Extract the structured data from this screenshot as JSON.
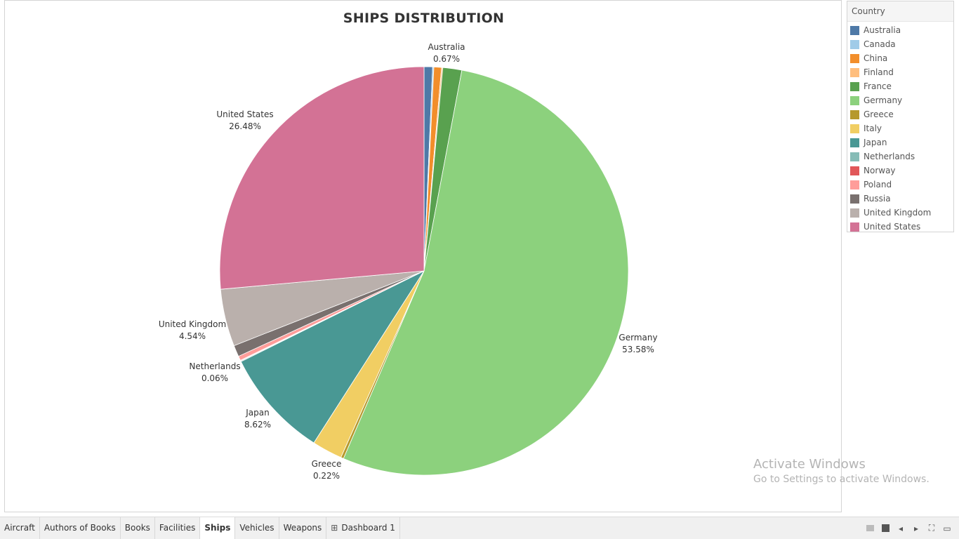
{
  "legend": {
    "title": "Country",
    "items": [
      {
        "label": "Australia",
        "color": "#4e79a7"
      },
      {
        "label": "Canada",
        "color": "#a0cbe8"
      },
      {
        "label": "China",
        "color": "#f28e2b"
      },
      {
        "label": "Finland",
        "color": "#ffbe7d"
      },
      {
        "label": "France",
        "color": "#59a14f"
      },
      {
        "label": "Germany",
        "color": "#8cd17d"
      },
      {
        "label": "Greece",
        "color": "#b6992d"
      },
      {
        "label": "Italy",
        "color": "#f1ce63"
      },
      {
        "label": "Japan",
        "color": "#499894"
      },
      {
        "label": "Netherlands",
        "color": "#86bcb6"
      },
      {
        "label": "Norway",
        "color": "#e15759"
      },
      {
        "label": "Poland",
        "color": "#ff9d9a"
      },
      {
        "label": "Russia",
        "color": "#79706e"
      },
      {
        "label": "United Kingdom",
        "color": "#bab0ac"
      },
      {
        "label": "United States",
        "color": "#d37295"
      }
    ]
  },
  "chart_data": {
    "type": "pie",
    "title": "SHIPS DISTRIBUTION",
    "unit": "%",
    "slices": [
      {
        "label": "Australia",
        "value": 0.67,
        "color": "#4e79a7",
        "show_label": true,
        "pct_text": "0.67%"
      },
      {
        "label": "Canada",
        "value": 0.1,
        "color": "#a0cbe8",
        "show_label": false
      },
      {
        "label": "China",
        "value": 0.6,
        "color": "#f28e2b",
        "show_label": false
      },
      {
        "label": "Finland",
        "value": 0.1,
        "color": "#ffbe7d",
        "show_label": false
      },
      {
        "label": "France",
        "value": 1.5,
        "color": "#59a14f",
        "show_label": false
      },
      {
        "label": "Germany",
        "value": 53.58,
        "color": "#8cd17d",
        "show_label": true,
        "pct_text": "53.58%"
      },
      {
        "label": "Greece",
        "value": 0.22,
        "color": "#b6992d",
        "show_label": true,
        "pct_text": "0.22%"
      },
      {
        "label": "Italy",
        "value": 2.4,
        "color": "#f1ce63",
        "show_label": false
      },
      {
        "label": "Japan",
        "value": 8.62,
        "color": "#499894",
        "show_label": true,
        "pct_text": "8.62%"
      },
      {
        "label": "Netherlands",
        "value": 0.06,
        "color": "#86bcb6",
        "show_label": true,
        "pct_text": "0.06%"
      },
      {
        "label": "Norway",
        "value": 0.05,
        "color": "#e15759",
        "show_label": false
      },
      {
        "label": "Poland",
        "value": 0.35,
        "color": "#ff9d9a",
        "show_label": false
      },
      {
        "label": "Russia",
        "value": 0.9,
        "color": "#79706e",
        "show_label": false
      },
      {
        "label": "United Kingdom",
        "value": 4.54,
        "color": "#bab0ac",
        "show_label": true,
        "pct_text": "4.54%"
      },
      {
        "label": "United States",
        "value": 26.48,
        "color": "#d37295",
        "show_label": true,
        "pct_text": "26.48%"
      }
    ]
  },
  "watermark": {
    "title": "Activate Windows",
    "subtitle": "Go to Settings to activate Windows."
  },
  "tabs": [
    {
      "label": "Aircraft",
      "active": false
    },
    {
      "label": "Authors of Books",
      "active": false
    },
    {
      "label": "Books",
      "active": false
    },
    {
      "label": "Facilities",
      "active": false
    },
    {
      "label": "Ships",
      "active": true
    },
    {
      "label": "Vehicles",
      "active": false
    },
    {
      "label": "Weapons",
      "active": false
    },
    {
      "label": "Dashboard 1",
      "active": false,
      "icon": "dashboard-grid-icon"
    }
  ],
  "nav_icons": [
    "sheet-sorter-icon",
    "filmstrip-icon",
    "previous-sheet-icon",
    "next-sheet-icon",
    "fit-screen-icon",
    "presentation-mode-icon"
  ]
}
